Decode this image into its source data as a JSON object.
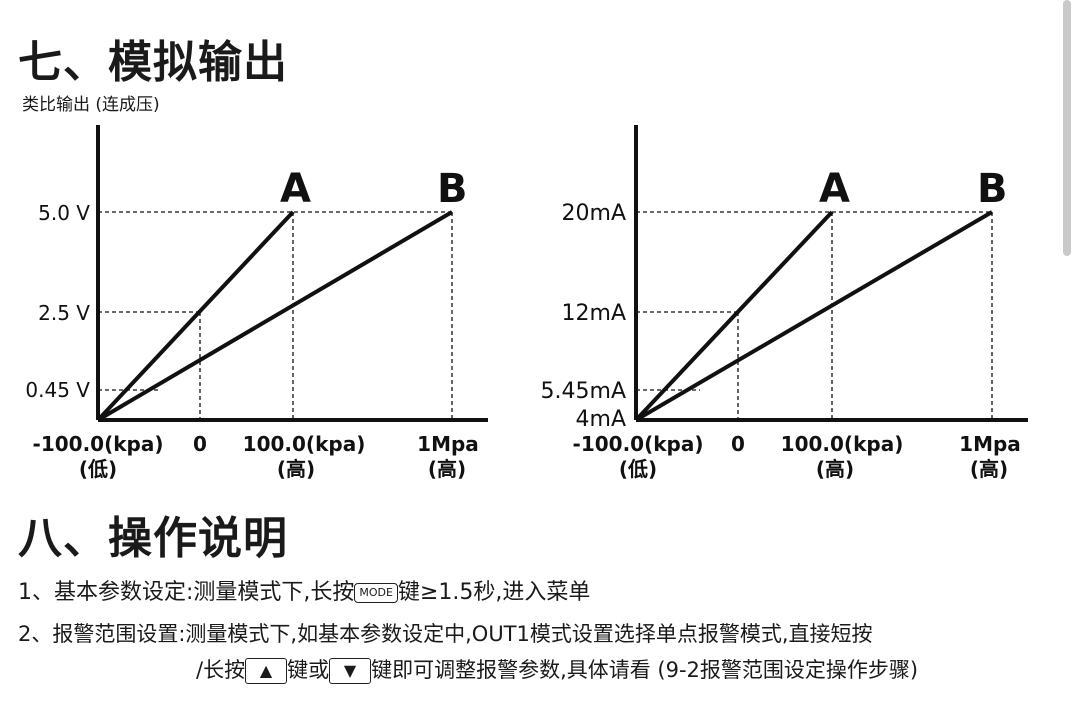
{
  "section7": {
    "title": "七、模拟输出",
    "subtitle": "类比输出 (连成压)"
  },
  "chart_data": [
    {
      "type": "line",
      "y_tick_labels": [
        "5.0 V",
        "2.5 V",
        "0.45 V"
      ],
      "x_tick_labels": [
        "-100.0(kpa)",
        "0",
        "100.0(kpa)",
        "1Mpa"
      ],
      "x_sub_labels": [
        "(低)",
        "",
        "(高)",
        "(高)"
      ],
      "series": [
        {
          "name": "A",
          "points": [
            [
              -100,
              0
            ],
            [
              100,
              5.0
            ]
          ]
        },
        {
          "name": "B",
          "points": [
            [
              -100,
              0
            ],
            [
              1000,
              5.0
            ]
          ]
        }
      ]
    },
    {
      "type": "line",
      "y_tick_labels": [
        "20mA",
        "12mA",
        "5.45mA",
        "4mA"
      ],
      "x_tick_labels": [
        "-100.0(kpa)",
        "0",
        "100.0(kpa)",
        "1Mpa"
      ],
      "x_sub_labels": [
        "(低)",
        "",
        "(高)",
        "(高)"
      ],
      "series": [
        {
          "name": "A",
          "points": [
            [
              -100,
              4
            ],
            [
              100,
              20
            ]
          ]
        },
        {
          "name": "B",
          "points": [
            [
              -100,
              4
            ],
            [
              1000,
              20
            ]
          ]
        }
      ]
    }
  ],
  "section8": {
    "title": "八、操作说明",
    "item1": {
      "prefix": "1、基本参数设定:测量模式下,长按",
      "key": "MODE",
      "suffix": "键≥1.5秒,进入菜单"
    },
    "item2": {
      "line1": "2、报警范围设置:测量模式下,如基本参数设定中,OUT1模式设置选择单点报警模式,直接短按",
      "line2_prefix": "/长按",
      "up_key": "▲",
      "middle": "键或",
      "down_key": "▼",
      "line2_suffix": "键即可调整报警参数,具体请看 (9-2报警范围设定操作步骤)"
    }
  }
}
